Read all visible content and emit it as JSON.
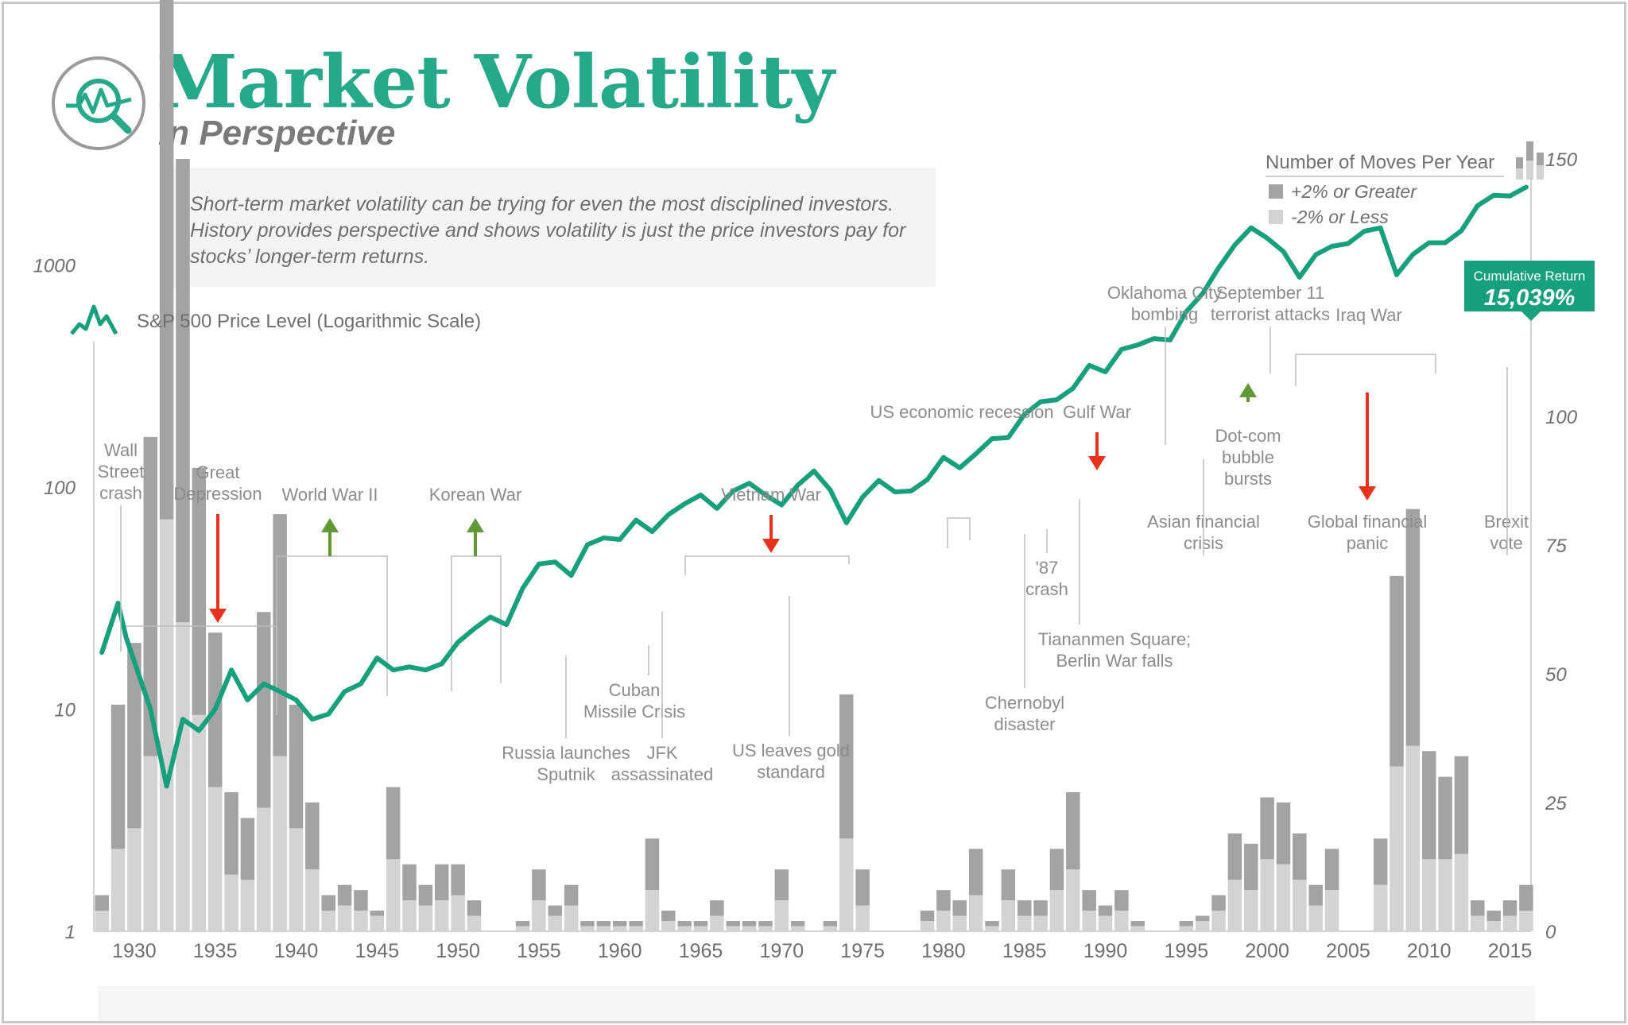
{
  "header": {
    "title": "Market Volatility",
    "subtitle": "in Perspective",
    "description": "Short-term market volatility can be trying for even the most disciplined investors. History provides perspective and shows volatility is just the price investors pay for stocks’ longer-term returns."
  },
  "colors": {
    "accent": "#25a98a",
    "line": "#17a07e",
    "bar_up": "#a3a3a3",
    "bar_down": "#d3d3d3",
    "arrow_down": "#e8321e",
    "arrow_up": "#5f9a35"
  },
  "legend": {
    "line_label": "S&P 500 Price Level (Logarithmic Scale)",
    "bars_title": "Number of Moves Per Year",
    "bar_up_label": "+2% or Greater",
    "bar_down_label": "-2% or Less"
  },
  "callout": {
    "label": "Cumulative Return",
    "value": "15,039%"
  },
  "chart_data": {
    "type": "bar+line",
    "x_ticks": [
      "1930",
      "1935",
      "1940",
      "1945",
      "1950",
      "1955",
      "1960",
      "1965",
      "1970",
      "1975",
      "1980",
      "1985",
      "1990",
      "1995",
      "2000",
      "2005",
      "2010",
      "2015"
    ],
    "y_left_ticks": [
      "1000",
      "100",
      "10",
      "1"
    ],
    "y_left_scale": "log",
    "y_left_range": [
      1,
      3000
    ],
    "y_right_ticks": [
      "150",
      "125",
      "100",
      "75",
      "50",
      "25",
      "0"
    ],
    "y_right_range": [
      0,
      150
    ],
    "bar_years": [
      1928,
      1929,
      1930,
      1931,
      1932,
      1933,
      1934,
      1935,
      1936,
      1937,
      1938,
      1939,
      1940,
      1941,
      1942,
      1943,
      1944,
      1945,
      1946,
      1947,
      1948,
      1949,
      1950,
      1951,
      1952,
      1953,
      1954,
      1955,
      1956,
      1957,
      1958,
      1959,
      1960,
      1961,
      1962,
      1963,
      1964,
      1965,
      1966,
      1967,
      1968,
      1969,
      1970,
      1971,
      1972,
      1973,
      1974,
      1975,
      1976,
      1977,
      1978,
      1979,
      1980,
      1981,
      1982,
      1983,
      1984,
      1985,
      1986,
      1987,
      1988,
      1989,
      1990,
      1991,
      1992,
      1993,
      1994,
      1995,
      1996,
      1997,
      1998,
      1999,
      2000,
      2001,
      2002,
      2003,
      2004,
      2005,
      2006,
      2007,
      2008,
      2009,
      2010,
      2011,
      2012,
      2013,
      2014,
      2015,
      2016
    ],
    "series": [
      {
        "name": "+2% or Greater",
        "values": [
          3,
          28,
          36,
          62,
          140,
          90,
          48,
          30,
          16,
          12,
          38,
          47,
          24,
          13,
          3,
          4,
          4,
          1,
          14,
          7,
          4,
          7,
          6,
          3,
          0,
          0,
          1,
          6,
          2,
          4,
          1,
          1,
          1,
          1,
          10,
          2,
          1,
          1,
          3,
          1,
          1,
          1,
          6,
          1,
          0,
          1,
          28,
          7,
          0,
          0,
          0,
          2,
          4,
          3,
          9,
          1,
          6,
          3,
          3,
          8,
          15,
          4,
          2,
          4,
          1,
          0,
          0,
          1,
          1,
          3,
          9,
          9,
          12,
          12,
          9,
          4,
          8,
          0,
          0,
          9,
          37,
          46,
          21,
          16,
          19,
          3,
          2,
          3,
          5
        ]
      },
      {
        "name": "-2% or Less",
        "values": [
          4,
          16,
          20,
          34,
          80,
          60,
          42,
          28,
          11,
          10,
          24,
          34,
          20,
          12,
          4,
          5,
          4,
          3,
          14,
          6,
          5,
          6,
          7,
          3,
          0,
          0,
          1,
          6,
          3,
          5,
          1,
          1,
          1,
          1,
          8,
          2,
          1,
          1,
          3,
          1,
          1,
          1,
          6,
          1,
          0,
          1,
          18,
          5,
          0,
          0,
          0,
          2,
          4,
          3,
          7,
          1,
          6,
          3,
          3,
          8,
          12,
          4,
          3,
          4,
          1,
          0,
          0,
          1,
          2,
          4,
          10,
          8,
          14,
          13,
          10,
          5,
          8,
          0,
          0,
          9,
          32,
          36,
          14,
          14,
          15,
          3,
          2,
          3,
          4
        ]
      }
    ],
    "line_points": [
      [
        1928,
        18
      ],
      [
        1929,
        30
      ],
      [
        1929.5,
        21
      ],
      [
        1931,
        10
      ],
      [
        1932,
        4.5
      ],
      [
        1933,
        9
      ],
      [
        1934,
        8
      ],
      [
        1935,
        10
      ],
      [
        1936,
        15
      ],
      [
        1937,
        11
      ],
      [
        1938,
        13
      ],
      [
        1939,
        12
      ],
      [
        1940,
        11
      ],
      [
        1941,
        9
      ],
      [
        1942,
        9.5
      ],
      [
        1943,
        12
      ],
      [
        1944,
        13
      ],
      [
        1945,
        17
      ],
      [
        1946,
        15
      ],
      [
        1947,
        15.5
      ],
      [
        1948,
        15
      ],
      [
        1949,
        16
      ],
      [
        1950,
        20
      ],
      [
        1951,
        23
      ],
      [
        1952,
        26
      ],
      [
        1953,
        24
      ],
      [
        1954,
        35
      ],
      [
        1955,
        45
      ],
      [
        1956,
        46
      ],
      [
        1957,
        40
      ],
      [
        1958,
        55
      ],
      [
        1959,
        59
      ],
      [
        1960,
        58
      ],
      [
        1961,
        71
      ],
      [
        1962,
        63
      ],
      [
        1963,
        75
      ],
      [
        1964,
        84
      ],
      [
        1965,
        92
      ],
      [
        1966,
        80
      ],
      [
        1967,
        96
      ],
      [
        1968,
        104
      ],
      [
        1969,
        92
      ],
      [
        1970,
        83
      ],
      [
        1971,
        102
      ],
      [
        1972,
        118
      ],
      [
        1973,
        97
      ],
      [
        1974,
        69
      ],
      [
        1975,
        90
      ],
      [
        1976,
        107
      ],
      [
        1977,
        95
      ],
      [
        1978,
        96
      ],
      [
        1979,
        108
      ],
      [
        1980,
        136
      ],
      [
        1981,
        122
      ],
      [
        1982,
        141
      ],
      [
        1983,
        165
      ],
      [
        1984,
        167
      ],
      [
        1985,
        212
      ],
      [
        1986,
        242
      ],
      [
        1987,
        247
      ],
      [
        1988,
        278
      ],
      [
        1989,
        353
      ],
      [
        1990,
        330
      ],
      [
        1991,
        417
      ],
      [
        1992,
        436
      ],
      [
        1993,
        466
      ],
      [
        1994,
        459
      ],
      [
        1995,
        616
      ],
      [
        1996,
        741
      ],
      [
        1997,
        970
      ],
      [
        1998,
        1229
      ],
      [
        1999,
        1469
      ],
      [
        2000,
        1320
      ],
      [
        2001,
        1148
      ],
      [
        2002,
        880
      ],
      [
        2003,
        1112
      ],
      [
        2004,
        1212
      ],
      [
        2005,
        1248
      ],
      [
        2006,
        1418
      ],
      [
        2007,
        1468
      ],
      [
        2008,
        903
      ],
      [
        2009,
        1115
      ],
      [
        2010,
        1258
      ],
      [
        2011,
        1258
      ],
      [
        2012,
        1426
      ],
      [
        2013,
        1848
      ],
      [
        2014,
        2059
      ],
      [
        2015,
        2044
      ],
      [
        2016,
        2239
      ]
    ],
    "annotations": [
      {
        "label": [
          "Wall",
          "Street",
          "crash"
        ],
        "year": 1929
      },
      {
        "label": [
          "Great",
          "Depression"
        ],
        "year": 1935,
        "arrow": "down"
      },
      {
        "label": [
          "World War II"
        ],
        "year": 1942.5,
        "arrow": "up"
      },
      {
        "label": [
          "Korean War"
        ],
        "year": 1951.5,
        "arrow": "up"
      },
      {
        "label": [
          "Russia launches",
          "Sputnik"
        ],
        "year": 1957
      },
      {
        "label": [
          "Cuban",
          "Missile Crisis"
        ],
        "year": 1962
      },
      {
        "label": [
          "JFK",
          "assassinated"
        ],
        "year": 1963
      },
      {
        "label": [
          "Vietnam War"
        ],
        "year": 1970,
        "arrow": "down"
      },
      {
        "label": [
          "US leaves gold",
          "standard"
        ],
        "year": 1971
      },
      {
        "label": [
          "US economic recession"
        ],
        "year": 1982
      },
      {
        "label": [
          "Chernobyl",
          "disaster"
        ],
        "year": 1986
      },
      {
        "label": [
          "'87",
          "crash"
        ],
        "year": 1987
      },
      {
        "label": [
          "Tiananmen Square;",
          "Berlin War falls"
        ],
        "year": 1989
      },
      {
        "label": [
          "Gulf War"
        ],
        "year": 1990,
        "arrow": "down"
      },
      {
        "label": [
          "Oklahoma City",
          "bombing"
        ],
        "year": 1995
      },
      {
        "label": [
          "Asian financial",
          "crisis"
        ],
        "year": 1997
      },
      {
        "label": [
          "Dot-com",
          "bubble",
          "bursts"
        ],
        "year": 2000,
        "arrow": "up"
      },
      {
        "label": [
          "September 11",
          "terrorist attacks"
        ],
        "year": 2001
      },
      {
        "label": [
          "Iraq War"
        ],
        "year": 2003
      },
      {
        "label": [
          "Global financial",
          "panic"
        ],
        "year": 2008,
        "arrow": "down"
      },
      {
        "label": [
          "Brexit",
          "vote"
        ],
        "year": 2016
      }
    ]
  }
}
